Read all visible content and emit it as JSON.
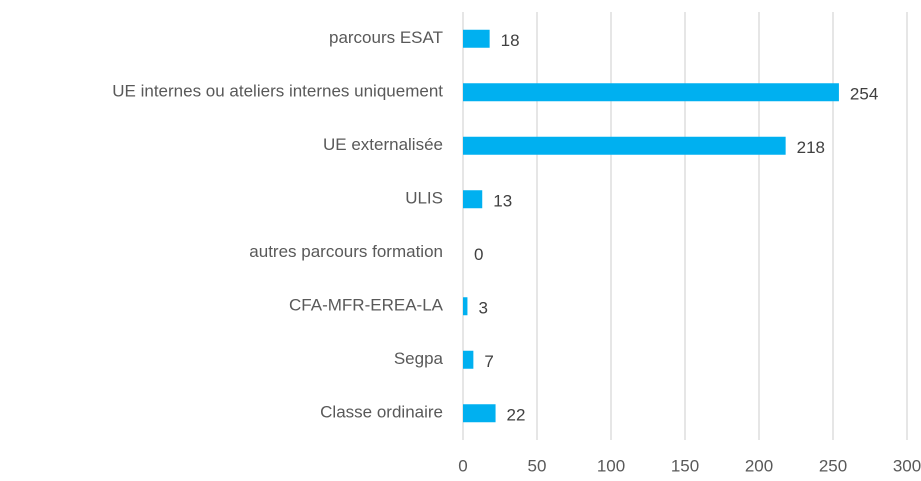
{
  "chart_data": {
    "type": "bar",
    "orientation": "horizontal",
    "categories": [
      "parcours ESAT",
      "UE internes ou ateliers internes uniquement",
      "UE externalisée",
      "ULIS",
      "autres parcours formation",
      "CFA-MFR-EREA-LA",
      "Segpa",
      "Classe ordinaire"
    ],
    "values": [
      18,
      254,
      218,
      13,
      0,
      3,
      7,
      22
    ],
    "color": "#00b0f0",
    "xlim": [
      0,
      300
    ],
    "xticks": [
      0,
      50,
      100,
      150,
      200,
      250,
      300
    ],
    "grid": true
  }
}
